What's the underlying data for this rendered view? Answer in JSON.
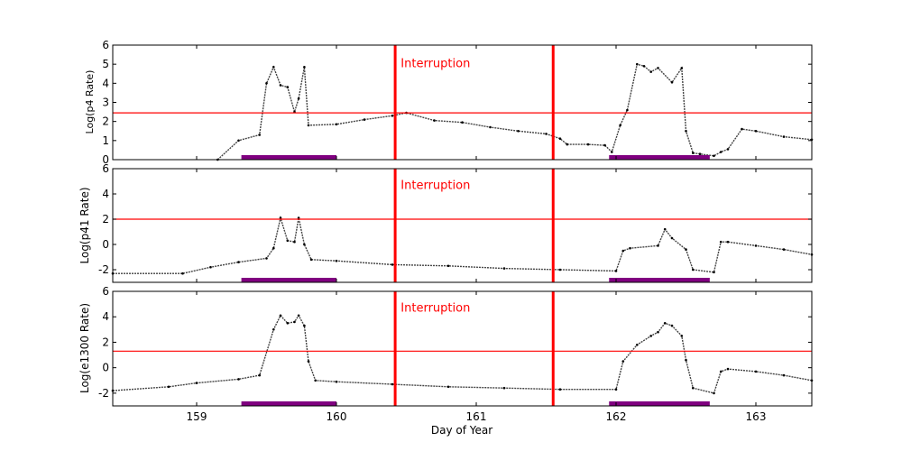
{
  "chart_data": [
    {
      "type": "scatter",
      "panel": "p4",
      "ylabel": "Log(p4 Rate)",
      "xlabel": "",
      "xlim": [
        158.4,
        163.4
      ],
      "ylim": [
        0,
        6
      ],
      "yticks": [
        "0",
        "1",
        "2",
        "3",
        "4",
        "5",
        "6"
      ],
      "threshold": 2.45,
      "interruptions": [
        160.42,
        161.55
      ],
      "annotation": "Interruption",
      "annotation_x": 160.46,
      "annotation_y": 4.85,
      "event_bars": [
        [
          159.32,
          160.0
        ],
        [
          161.95,
          162.67
        ]
      ],
      "series": [
        {
          "name": "p4 rate",
          "x": [
            159.15,
            159.3,
            159.45,
            159.5,
            159.55,
            159.6,
            159.65,
            159.7,
            159.73,
            159.77,
            159.8,
            160.0,
            160.2,
            160.4,
            160.5,
            160.7,
            160.9,
            161.1,
            161.3,
            161.5,
            161.6,
            161.65,
            161.8,
            161.92,
            161.97,
            162.03,
            162.08,
            162.15,
            162.2,
            162.25,
            162.3,
            162.4,
            162.47,
            162.5,
            162.55,
            162.6,
            162.7,
            162.75,
            162.8,
            162.9,
            163.0,
            163.2,
            163.4
          ],
          "y": [
            0.0,
            1.0,
            1.3,
            4.0,
            4.85,
            3.9,
            3.8,
            2.5,
            3.2,
            4.85,
            1.8,
            1.85,
            2.1,
            2.3,
            2.45,
            2.05,
            1.95,
            1.7,
            1.5,
            1.35,
            1.1,
            0.8,
            0.8,
            0.75,
            0.4,
            1.8,
            2.6,
            5.0,
            4.9,
            4.6,
            4.8,
            4.05,
            4.8,
            1.5,
            0.35,
            0.3,
            0.2,
            0.4,
            0.55,
            1.6,
            1.5,
            1.2,
            1.05
          ]
        }
      ]
    },
    {
      "type": "scatter",
      "panel": "p41",
      "ylabel": "Log(p41 Rate)",
      "xlabel": "",
      "xlim": [
        158.4,
        163.4
      ],
      "ylim": [
        -3,
        6
      ],
      "yticks": [
        "-2",
        "0",
        "2",
        "4",
        "6"
      ],
      "threshold": 2.0,
      "interruptions": [
        160.42,
        161.55
      ],
      "annotation": "Interruption",
      "annotation_x": 160.46,
      "annotation_y": 4.4,
      "event_bars": [
        [
          159.32,
          160.0
        ],
        [
          161.95,
          162.67
        ]
      ],
      "series": [
        {
          "name": "p41 rate",
          "x": [
            158.4,
            158.9,
            159.1,
            159.3,
            159.5,
            159.55,
            159.6,
            159.65,
            159.7,
            159.73,
            159.77,
            159.82,
            160.0,
            160.4,
            160.8,
            161.2,
            161.6,
            162.0,
            162.05,
            162.1,
            162.3,
            162.35,
            162.4,
            162.5,
            162.55,
            162.7,
            162.75,
            162.8,
            163.0,
            163.2,
            163.4
          ],
          "y": [
            -2.3,
            -2.3,
            -1.8,
            -1.4,
            -1.1,
            -0.3,
            2.1,
            0.3,
            0.2,
            2.1,
            0.0,
            -1.2,
            -1.3,
            -1.6,
            -1.7,
            -1.9,
            -2.0,
            -2.1,
            -0.5,
            -0.3,
            -0.1,
            1.2,
            0.5,
            -0.4,
            -2.0,
            -2.2,
            0.2,
            0.2,
            -0.1,
            -0.4,
            -0.8
          ]
        }
      ]
    },
    {
      "type": "scatter",
      "panel": "e1300",
      "ylabel": "Log(e1300 Rate)",
      "xlabel": "Day of Year",
      "xlim": [
        158.4,
        163.4
      ],
      "ylim": [
        -3,
        6
      ],
      "yticks": [
        "-2",
        "0",
        "2",
        "4",
        "6"
      ],
      "xticks": [
        "159",
        "160",
        "161",
        "162",
        "163"
      ],
      "threshold": 1.3,
      "interruptions": [
        160.42,
        161.55
      ],
      "annotation": "Interruption",
      "annotation_x": 160.46,
      "annotation_y": 4.4,
      "event_bars": [
        [
          159.32,
          160.0
        ],
        [
          161.95,
          162.67
        ]
      ],
      "series": [
        {
          "name": "e1300 rate",
          "x": [
            158.4,
            158.8,
            159.0,
            159.3,
            159.45,
            159.55,
            159.6,
            159.65,
            159.7,
            159.73,
            159.77,
            159.8,
            159.85,
            160.0,
            160.4,
            160.8,
            161.2,
            161.6,
            162.0,
            162.05,
            162.15,
            162.25,
            162.3,
            162.35,
            162.4,
            162.47,
            162.5,
            162.55,
            162.7,
            162.75,
            162.8,
            163.0,
            163.2,
            163.4
          ],
          "y": [
            -1.8,
            -1.5,
            -1.2,
            -0.9,
            -0.6,
            3.0,
            4.1,
            3.5,
            3.6,
            4.1,
            3.3,
            0.5,
            -1.0,
            -1.1,
            -1.3,
            -1.5,
            -1.6,
            -1.7,
            -1.7,
            0.5,
            1.8,
            2.5,
            2.8,
            3.5,
            3.3,
            2.5,
            0.6,
            -1.6,
            -2.0,
            -0.3,
            -0.1,
            -0.3,
            -0.6,
            -1.0
          ]
        }
      ]
    }
  ]
}
